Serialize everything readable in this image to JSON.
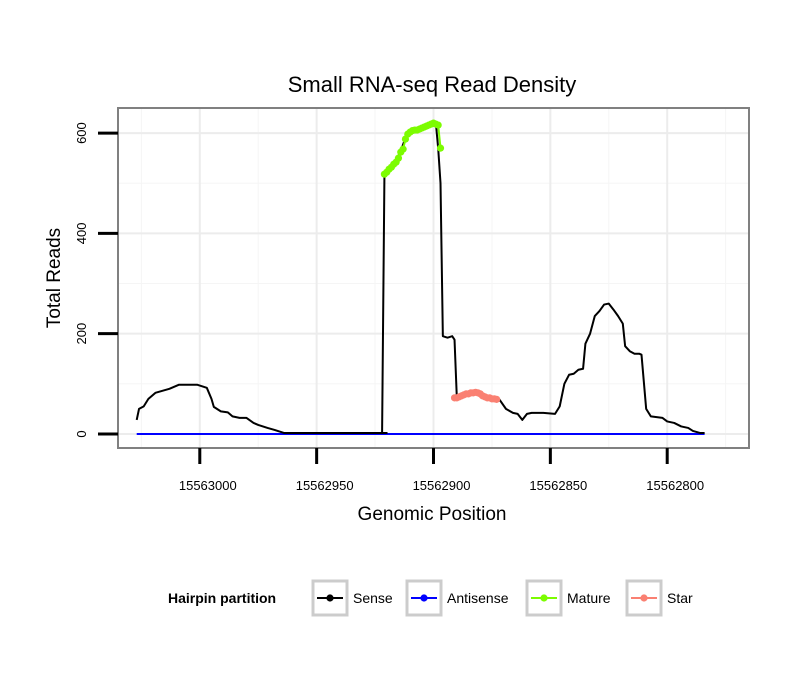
{
  "chart_data": {
    "type": "line",
    "title": "Small RNA-seq Read Density",
    "xlabel": "Genomic Position",
    "ylabel": "Total Reads",
    "xlim": [
      15563035,
      15562765
    ],
    "x_reversed": true,
    "ylim": [
      -28,
      650
    ],
    "xticks": [
      15563000,
      15562950,
      15562900,
      15562850,
      15562800
    ],
    "yticks": [
      0,
      200,
      400,
      600
    ],
    "grid": true,
    "legend": {
      "title": "Hairpin partition",
      "position": "bottom",
      "entries": [
        {
          "name": "Sense",
          "color": "#000000"
        },
        {
          "name": "Antisense",
          "color": "#0000ff"
        },
        {
          "name": "Mature",
          "color": "#7cfc00"
        },
        {
          "name": "Star",
          "color": "#fa8072"
        }
      ]
    },
    "series": [
      {
        "name": "Sense",
        "color": "#000000",
        "points": [
          [
            15563027,
            28
          ],
          [
            15563026,
            50
          ],
          [
            15563024,
            55
          ],
          [
            15563022,
            70
          ],
          [
            15563019,
            82
          ],
          [
            15563016,
            86
          ],
          [
            15563013,
            90
          ],
          [
            15563009,
            98
          ],
          [
            15563001,
            98
          ],
          [
            15562997,
            92
          ],
          [
            15562995,
            70
          ],
          [
            15562994,
            54
          ],
          [
            15562991,
            45
          ],
          [
            15562988,
            43
          ],
          [
            15562986,
            35
          ],
          [
            15562983,
            32
          ],
          [
            15562980,
            32
          ],
          [
            15562977,
            22
          ],
          [
            15562975,
            18
          ],
          [
            15562971,
            12
          ],
          [
            15562968,
            8
          ],
          [
            15562964,
            2
          ],
          [
            15562920,
            2
          ],
          [
            15562922,
            2
          ],
          [
            15562921,
            515
          ],
          [
            15562919,
            525
          ],
          [
            15562916,
            545
          ],
          [
            15562914,
            565
          ],
          [
            15562912,
            590
          ],
          [
            15562910,
            605
          ],
          [
            15562906,
            610
          ],
          [
            15562901,
            618
          ],
          [
            15562899,
            620
          ],
          [
            15562898,
            570
          ],
          [
            15562897,
            500
          ],
          [
            15562896,
            195
          ],
          [
            15562894,
            192
          ],
          [
            15562892,
            195
          ],
          [
            15562891,
            188
          ],
          [
            15562890,
            70
          ],
          [
            15562887,
            75
          ],
          [
            15562884,
            80
          ],
          [
            15562881,
            82
          ],
          [
            15562878,
            78
          ],
          [
            15562875,
            72
          ],
          [
            15562872,
            70
          ],
          [
            15562869,
            50
          ],
          [
            15562866,
            42
          ],
          [
            15562864,
            40
          ],
          [
            15562862,
            28
          ],
          [
            15562860,
            40
          ],
          [
            15562858,
            42
          ],
          [
            15562853,
            42
          ],
          [
            15562848,
            40
          ],
          [
            15562846,
            55
          ],
          [
            15562844,
            100
          ],
          [
            15562842,
            118
          ],
          [
            15562840,
            120
          ],
          [
            15562838,
            128
          ],
          [
            15562836,
            130
          ],
          [
            15562835,
            180
          ],
          [
            15562833,
            200
          ],
          [
            15562831,
            235
          ],
          [
            15562829,
            245
          ],
          [
            15562827,
            258
          ],
          [
            15562825,
            260
          ],
          [
            15562823,
            248
          ],
          [
            15562821,
            235
          ],
          [
            15562819,
            220
          ],
          [
            15562818,
            175
          ],
          [
            15562816,
            165
          ],
          [
            15562814,
            160
          ],
          [
            15562812,
            160
          ],
          [
            15562811,
            158
          ],
          [
            15562809,
            50
          ],
          [
            15562807,
            35
          ],
          [
            15562802,
            32
          ],
          [
            15562800,
            25
          ],
          [
            15562797,
            22
          ],
          [
            15562794,
            15
          ],
          [
            15562791,
            12
          ],
          [
            15562789,
            6
          ],
          [
            15562786,
            2
          ],
          [
            15562784,
            2
          ]
        ]
      },
      {
        "name": "Antisense",
        "color": "#0000ff",
        "points": [
          [
            15563027,
            0
          ],
          [
            15562784,
            0
          ]
        ]
      },
      {
        "name": "Mature",
        "color": "#7cfc00",
        "points": [
          [
            15562921,
            518
          ],
          [
            15562920,
            522
          ],
          [
            15562919,
            528
          ],
          [
            15562918,
            532
          ],
          [
            15562917,
            538
          ],
          [
            15562916,
            542
          ],
          [
            15562915,
            550
          ],
          [
            15562914,
            562
          ],
          [
            15562913,
            568
          ],
          [
            15562912,
            588
          ],
          [
            15562911,
            598
          ],
          [
            15562910,
            602
          ],
          [
            15562909,
            605
          ],
          [
            15562908,
            606
          ],
          [
            15562907,
            606
          ],
          [
            15562906,
            608
          ],
          [
            15562905,
            610
          ],
          [
            15562904,
            612
          ],
          [
            15562903,
            614
          ],
          [
            15562902,
            616
          ],
          [
            15562901,
            618
          ],
          [
            15562900,
            620
          ],
          [
            15562899,
            618
          ],
          [
            15562898,
            616
          ],
          [
            15562897,
            570
          ]
        ]
      },
      {
        "name": "Star",
        "color": "#fa8072",
        "points": [
          [
            15562891,
            72
          ],
          [
            15562890,
            72
          ],
          [
            15562889,
            74
          ],
          [
            15562888,
            76
          ],
          [
            15562887,
            78
          ],
          [
            15562886,
            80
          ],
          [
            15562885,
            80
          ],
          [
            15562884,
            82
          ],
          [
            15562883,
            82
          ],
          [
            15562882,
            83
          ],
          [
            15562881,
            82
          ],
          [
            15562880,
            80
          ],
          [
            15562879,
            76
          ],
          [
            15562878,
            74
          ],
          [
            15562877,
            72
          ],
          [
            15562876,
            72
          ],
          [
            15562875,
            70
          ],
          [
            15562874,
            70
          ],
          [
            15562873,
            69
          ]
        ]
      }
    ]
  }
}
